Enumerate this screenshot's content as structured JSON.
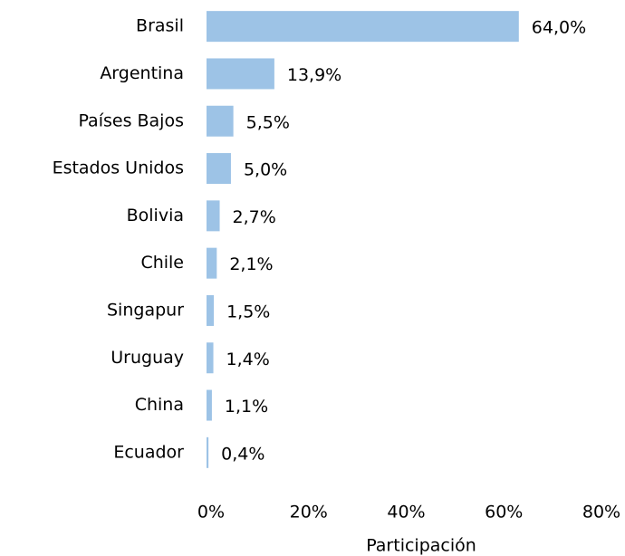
{
  "chart_data": {
    "type": "barh",
    "categories": [
      "Brasil",
      "Argentina",
      "Países Bajos",
      "Estados Unidos",
      "Bolivia",
      "Chile",
      "Singapur",
      "Uruguay",
      "China",
      "Ecuador"
    ],
    "values": [
      64.0,
      13.9,
      5.5,
      5.0,
      2.7,
      2.1,
      1.5,
      1.4,
      1.1,
      0.4
    ],
    "value_labels": [
      "64,0%",
      "13,9%",
      "5,5%",
      "5,0%",
      "2,7%",
      "2,1%",
      "1,5%",
      "1,4%",
      "1,1%",
      "0,4%"
    ],
    "color": "#9dc3e6",
    "xlim": [
      0,
      80
    ],
    "xticks": [
      {
        "value": 0,
        "label": "0%"
      },
      {
        "value": 20,
        "label": "20%"
      },
      {
        "value": 40,
        "label": "40%"
      },
      {
        "value": 60,
        "label": "60%"
      },
      {
        "value": 80,
        "label": "80%"
      }
    ],
    "x_label": "Participación",
    "grid": false
  }
}
